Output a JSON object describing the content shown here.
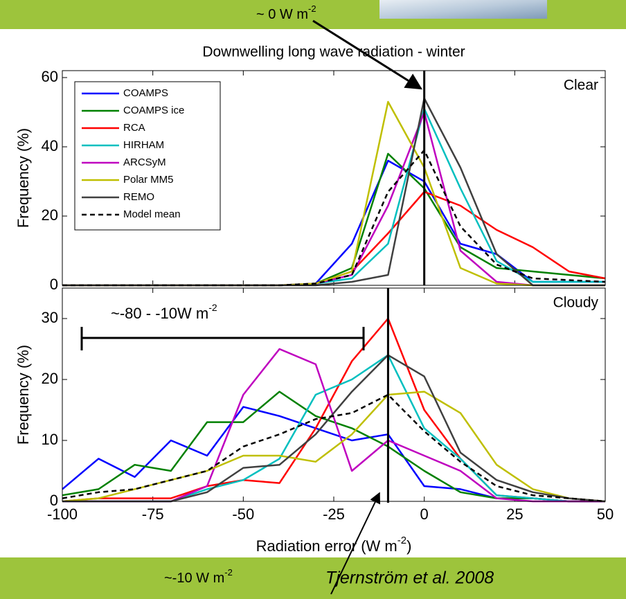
{
  "annotations": {
    "top": {
      "text": "~ 0 W m",
      "sup": "-2"
    },
    "span": {
      "text": "~-80 - -10W m",
      "sup": "-2"
    },
    "bottom": {
      "text": "~-10 W m",
      "sup": "-2"
    },
    "citation": "Tjernström et al. 2008"
  },
  "chart_data": [
    {
      "type": "line",
      "title": "Downwelling long wave radiation - winter",
      "panel_label": "Clear",
      "ylabel": "Frequency (%)",
      "x": [
        -100,
        -90,
        -80,
        -70,
        -60,
        -50,
        -40,
        -30,
        -20,
        -10,
        0,
        10,
        20,
        30,
        40,
        50
      ],
      "xlim": [
        -100,
        50
      ],
      "xticks": [
        -100,
        -75,
        -50,
        -25,
        0,
        25,
        50
      ],
      "ylim": [
        0,
        62
      ],
      "yticks": [
        0,
        20,
        40,
        60
      ],
      "vline": 0,
      "legend": "upper left",
      "series": [
        {
          "name": "COAMPS",
          "color": "#0000ff",
          "values": [
            0,
            0,
            0,
            0,
            0,
            0,
            0,
            0.5,
            12,
            36,
            30,
            12,
            9,
            1,
            1,
            1
          ]
        },
        {
          "name": "COAMPS ice",
          "color": "#008000",
          "values": [
            0,
            0,
            0,
            0,
            0,
            0,
            0,
            0.5,
            5,
            38,
            28,
            11,
            5,
            4,
            3,
            2
          ]
        },
        {
          "name": "RCA",
          "color": "#ff0000",
          "values": [
            0,
            0,
            0,
            0,
            0,
            0,
            0,
            0.5,
            4,
            15,
            27,
            23,
            16,
            11,
            4,
            2
          ]
        },
        {
          "name": "HIRHAM",
          "color": "#00bfbf",
          "values": [
            0,
            0,
            0,
            0,
            0,
            0,
            0,
            0.5,
            2,
            12,
            51,
            28,
            7,
            1,
            1,
            1
          ]
        },
        {
          "name": "ARCSyM",
          "color": "#bf00bf",
          "values": [
            0,
            0,
            0,
            0,
            0,
            0,
            0,
            0.5,
            3,
            23,
            50,
            10,
            1,
            0,
            0,
            0
          ]
        },
        {
          "name": "Polar MM5",
          "color": "#bfbf00",
          "values": [
            0,
            0,
            0,
            0,
            0,
            0,
            0,
            0.5,
            4,
            53,
            34,
            5,
            0.5,
            0,
            0,
            0
          ]
        },
        {
          "name": "REMO",
          "color": "#404040",
          "values": [
            0,
            0,
            0,
            0,
            0,
            0,
            0,
            0,
            1,
            3,
            54,
            34,
            9,
            0,
            0,
            0
          ]
        },
        {
          "name": "Model mean",
          "color": "#000000",
          "dash": true,
          "values": [
            0,
            0,
            0,
            0,
            0,
            0,
            0,
            0.5,
            3,
            27,
            39,
            17,
            6,
            2,
            1.5,
            1
          ]
        }
      ]
    },
    {
      "type": "line",
      "panel_label": "Cloudy",
      "ylabel": "Frequency (%)",
      "xlabel": {
        "text": "Radiation error (W m",
        "sup": "-2",
        "after": ")"
      },
      "x": [
        -100,
        -90,
        -80,
        -70,
        -60,
        -50,
        -40,
        -30,
        -20,
        -10,
        0,
        10,
        20,
        30,
        40,
        50
      ],
      "xlim": [
        -100,
        50
      ],
      "xticks": [
        -100,
        -75,
        -50,
        -25,
        0,
        25,
        50
      ],
      "ylim": [
        0,
        35
      ],
      "yticks": [
        0,
        10,
        20,
        30
      ],
      "vline": -10,
      "series": [
        {
          "color": "#0000ff",
          "values": [
            2,
            7,
            4,
            10,
            7.5,
            15.5,
            14,
            12,
            10,
            11,
            2.5,
            2,
            0.5,
            0.5,
            0,
            0
          ]
        },
        {
          "color": "#008000",
          "values": [
            1,
            2,
            6,
            5,
            13,
            13,
            18,
            14,
            12,
            9,
            5,
            1.5,
            0.5,
            0.5,
            0,
            0
          ]
        },
        {
          "color": "#ff0000",
          "values": [
            0,
            0.5,
            0.5,
            0.5,
            2.5,
            3.5,
            3,
            12,
            23,
            30,
            15,
            7,
            1,
            0.5,
            0,
            0
          ]
        },
        {
          "color": "#00bfbf",
          "values": [
            0,
            0,
            0,
            0,
            2,
            3.5,
            7,
            17.5,
            20,
            24,
            12,
            7,
            1,
            0.5,
            0,
            0
          ]
        },
        {
          "color": "#bf00bf",
          "values": [
            0,
            0,
            0,
            0,
            2.5,
            17.5,
            25,
            22.5,
            5,
            10,
            7.5,
            5,
            0.5,
            0,
            0,
            0
          ]
        },
        {
          "color": "#bfbf00",
          "values": [
            0,
            0.5,
            2,
            3.5,
            5,
            7.5,
            7.5,
            6.5,
            11,
            17.5,
            18,
            14.5,
            6,
            2,
            0.5,
            0
          ]
        },
        {
          "color": "#404040",
          "values": [
            0,
            0,
            0,
            0,
            1.5,
            5.5,
            6,
            11,
            18,
            24,
            20.5,
            8,
            3.5,
            1.5,
            0.5,
            0
          ]
        },
        {
          "color": "#000000",
          "dash": true,
          "values": [
            0.5,
            1.5,
            2,
            3.5,
            5,
            9,
            11,
            13.5,
            14.5,
            17.5,
            11.5,
            6.5,
            2.5,
            1,
            0.5,
            0
          ]
        }
      ]
    }
  ]
}
